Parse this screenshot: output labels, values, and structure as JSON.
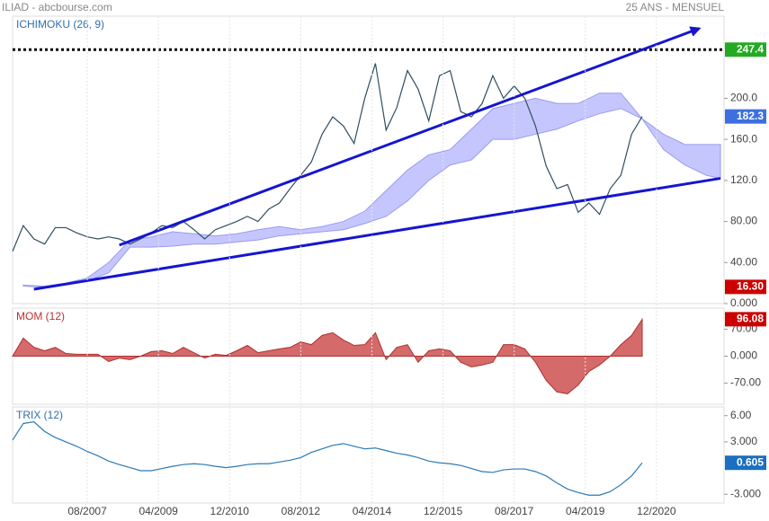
{
  "header": {
    "source": "ILIAD - abcbourse.com",
    "period": "25 ANS - MENSUEL"
  },
  "chart_data": [
    {
      "type": "line",
      "title": "ICHIMOKU (26, 9)",
      "color": "#2f4f5f",
      "title_color": "#3070b0",
      "last_tag_color": "#3d6fe0",
      "x": [
        "11/2005",
        "02/2006",
        "05/2006",
        "08/2006",
        "11/2006",
        "02/2007",
        "05/2007",
        "08/2007",
        "11/2007",
        "02/2008",
        "05/2008",
        "08/2008",
        "11/2008",
        "02/2009",
        "05/2009",
        "08/2009",
        "11/2009",
        "02/2010",
        "05/2010",
        "08/2010",
        "11/2010",
        "02/2011",
        "05/2011",
        "08/2011",
        "11/2011",
        "02/2012",
        "05/2012",
        "08/2012",
        "11/2012",
        "02/2013",
        "05/2013",
        "08/2013",
        "11/2013",
        "02/2014",
        "05/2014",
        "08/2014",
        "11/2014",
        "02/2015",
        "05/2015",
        "08/2015",
        "11/2015",
        "02/2016",
        "05/2016",
        "08/2016",
        "11/2016",
        "02/2017",
        "05/2017",
        "08/2017",
        "11/2017",
        "02/2018",
        "05/2018",
        "08/2018",
        "11/2018",
        "02/2019",
        "05/2019",
        "08/2019",
        "11/2019",
        "02/2020",
        "05/2020",
        "08/2020"
      ],
      "values": [
        51,
        76,
        63,
        58,
        74,
        74,
        69,
        65,
        63,
        65,
        63,
        58,
        63,
        69,
        76,
        74,
        80,
        72,
        63,
        72,
        76,
        80,
        85,
        80,
        92,
        98,
        112,
        125,
        138,
        165,
        182,
        173,
        156,
        200,
        234,
        169,
        191,
        227,
        209,
        178,
        222,
        227,
        187,
        182,
        195,
        222,
        200,
        212,
        200,
        173,
        134,
        112,
        116,
        89,
        98,
        87,
        112,
        125,
        165,
        182.3
      ],
      "cloud": {
        "color": "#b3b3ff",
        "x": [
          "02/2006",
          "08/2006",
          "02/2007",
          "08/2007",
          "02/2008",
          "08/2008",
          "02/2009",
          "08/2009",
          "02/2010",
          "08/2010",
          "02/2011",
          "08/2011",
          "02/2012",
          "08/2012",
          "02/2013",
          "08/2013",
          "02/2014",
          "08/2014",
          "02/2015",
          "08/2015",
          "02/2016",
          "08/2016",
          "02/2017",
          "08/2017",
          "02/2018",
          "08/2018",
          "02/2019",
          "08/2019",
          "02/2020",
          "08/2020",
          "02/2021",
          "08/2021",
          "02/2022",
          "06/2022"
        ],
        "upper": [
          18,
          17,
          20,
          25,
          40,
          62,
          65,
          70,
          68,
          66,
          68,
          72,
          75,
          72,
          75,
          80,
          90,
          110,
          130,
          145,
          150,
          170,
          190,
          195,
          200,
          195,
          195,
          205,
          205,
          180,
          165,
          155,
          155,
          155
        ],
        "lower": [
          17,
          16,
          19,
          22,
          30,
          55,
          55,
          56,
          58,
          58,
          60,
          62,
          66,
          68,
          70,
          72,
          78,
          85,
          100,
          120,
          135,
          140,
          160,
          160,
          165,
          170,
          178,
          185,
          190,
          180,
          150,
          135,
          125,
          122
        ]
      },
      "trendlines": [
        {
          "color": "#1515d0",
          "arrow": true,
          "x": [
            "05/2008",
            "12/2021"
          ],
          "values": [
            57,
            268
          ]
        },
        {
          "color": "#1515d0",
          "arrow": false,
          "x": [
            "05/2006",
            "06/2022"
          ],
          "values": [
            14,
            122
          ]
        }
      ],
      "resistance": 247.4,
      "resistance_tag_color": "#22aa22",
      "tags": [
        {
          "value": 16.3,
          "label": "16.30",
          "color": "#cc0000"
        }
      ],
      "xlim": [
        "11/2005",
        "07/2022"
      ],
      "ylim": [
        0,
        280
      ],
      "yticks": [
        {
          "value": 0,
          "label": "0.000"
        },
        {
          "value": 40,
          "label": "40.00"
        },
        {
          "value": 80,
          "label": "80.00"
        },
        {
          "value": 120,
          "label": "120.0"
        },
        {
          "value": 160,
          "label": "160.0"
        },
        {
          "value": 200,
          "label": "200.0"
        }
      ]
    },
    {
      "type": "area",
      "title": "MOM (12)",
      "color": "#d46a6a",
      "title_color": "#c03030",
      "last_tag_color": "#cc0000",
      "x": [
        "11/2005",
        "02/2006",
        "05/2006",
        "08/2006",
        "11/2006",
        "02/2007",
        "05/2007",
        "08/2007",
        "11/2007",
        "02/2008",
        "05/2008",
        "08/2008",
        "11/2008",
        "02/2009",
        "05/2009",
        "08/2009",
        "11/2009",
        "02/2010",
        "05/2010",
        "08/2010",
        "11/2010",
        "02/2011",
        "05/2011",
        "08/2011",
        "11/2011",
        "02/2012",
        "05/2012",
        "08/2012",
        "11/2012",
        "02/2013",
        "05/2013",
        "08/2013",
        "11/2013",
        "02/2014",
        "05/2014",
        "08/2014",
        "11/2014",
        "02/2015",
        "05/2015",
        "08/2015",
        "11/2015",
        "02/2016",
        "05/2016",
        "08/2016",
        "11/2016",
        "02/2017",
        "05/2017",
        "08/2017",
        "11/2017",
        "02/2018",
        "05/2018",
        "08/2018",
        "11/2018",
        "02/2019",
        "05/2019",
        "08/2019",
        "11/2019",
        "02/2020",
        "05/2020",
        "08/2020"
      ],
      "values": [
        0,
        47,
        23,
        14,
        23,
        7,
        5,
        5,
        5,
        -14,
        -5,
        -9,
        0,
        12,
        14,
        7,
        23,
        9,
        -5,
        5,
        2,
        14,
        28,
        9,
        14,
        19,
        23,
        37,
        30,
        54,
        61,
        42,
        28,
        30,
        61,
        -9,
        23,
        30,
        -16,
        14,
        19,
        14,
        -16,
        -28,
        -23,
        -16,
        30,
        30,
        19,
        -16,
        -63,
        -93,
        -98,
        -75,
        -40,
        -23,
        0,
        30,
        54,
        96.08
      ],
      "xlim": [
        "11/2005",
        "07/2022"
      ],
      "ylim": [
        -125,
        125
      ],
      "yticks": [
        {
          "value": -70,
          "label": "-70.00"
        },
        {
          "value": 0,
          "label": "0.000"
        },
        {
          "value": 70,
          "label": "70.00"
        }
      ]
    },
    {
      "type": "line",
      "title": "TRIX (12)",
      "color": "#2a7ab8",
      "title_color": "#3070b0",
      "last_tag_color": "#1a6fc0",
      "x": [
        "11/2005",
        "02/2006",
        "05/2006",
        "08/2006",
        "11/2006",
        "02/2007",
        "05/2007",
        "08/2007",
        "11/2007",
        "02/2008",
        "05/2008",
        "08/2008",
        "11/2008",
        "02/2009",
        "05/2009",
        "08/2009",
        "11/2009",
        "02/2010",
        "05/2010",
        "08/2010",
        "11/2010",
        "02/2011",
        "05/2011",
        "08/2011",
        "11/2011",
        "02/2012",
        "05/2012",
        "08/2012",
        "11/2012",
        "02/2013",
        "05/2013",
        "08/2013",
        "11/2013",
        "02/2014",
        "05/2014",
        "08/2014",
        "11/2014",
        "02/2015",
        "05/2015",
        "08/2015",
        "11/2015",
        "02/2016",
        "05/2016",
        "08/2016",
        "11/2016",
        "02/2017",
        "05/2017",
        "08/2017",
        "11/2017",
        "02/2018",
        "05/2018",
        "08/2018",
        "11/2018",
        "02/2019",
        "05/2019",
        "08/2019",
        "11/2019",
        "02/2020",
        "05/2020",
        "08/2020"
      ],
      "values": [
        3.2,
        5.1,
        5.3,
        4.2,
        3.5,
        3.0,
        2.5,
        1.9,
        1.4,
        0.8,
        0.4,
        0.05,
        -0.3,
        -0.3,
        -0.05,
        0.2,
        0.4,
        0.5,
        0.4,
        0.2,
        0.05,
        0.2,
        0.4,
        0.5,
        0.5,
        0.7,
        0.9,
        1.2,
        1.8,
        2.2,
        2.6,
        2.8,
        2.5,
        2.2,
        2.3,
        2.0,
        1.7,
        1.5,
        1.2,
        0.8,
        0.6,
        0.5,
        0.3,
        -0.05,
        -0.4,
        -0.5,
        -0.2,
        -0.1,
        -0.1,
        -0.4,
        -0.9,
        -1.7,
        -2.4,
        -2.8,
        -3.1,
        -3.1,
        -2.7,
        -1.9,
        -0.9,
        0.605
      ],
      "xlim": [
        "11/2005",
        "07/2022"
      ],
      "ylim": [
        -4,
        7
      ],
      "yticks": [
        {
          "value": -3,
          "label": "-3.000"
        },
        {
          "value": 3,
          "label": "3.000"
        },
        {
          "value": 6,
          "label": "6.00"
        }
      ],
      "xticks": [
        "08/2007",
        "04/2009",
        "12/2010",
        "08/2012",
        "04/2014",
        "12/2015",
        "08/2017",
        "04/2019",
        "12/2020"
      ]
    }
  ]
}
